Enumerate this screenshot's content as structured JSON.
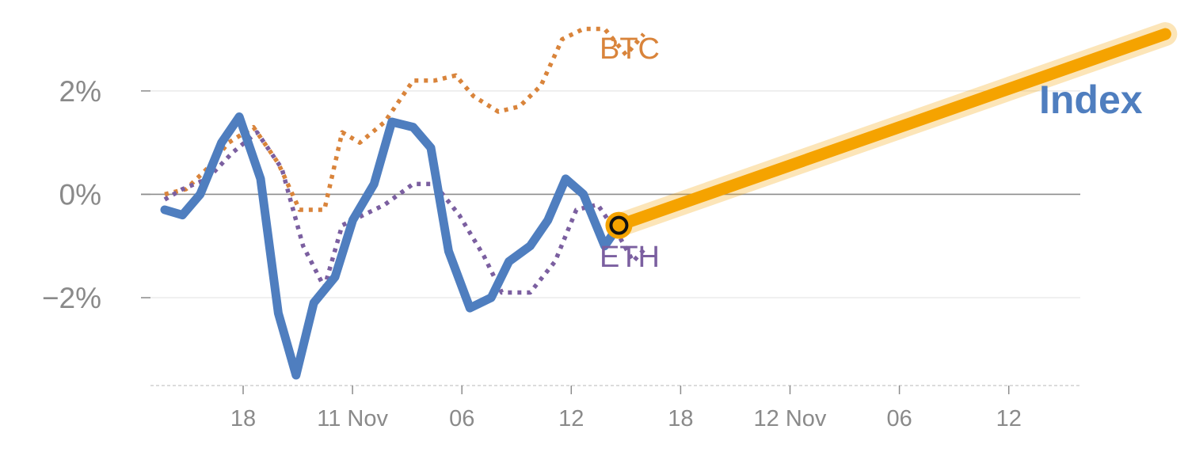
{
  "chart_data": {
    "type": "line",
    "title": "",
    "xlabel": "",
    "ylabel": "",
    "ylim": [
      -3.7,
      3.3
    ],
    "x_tick_labels": [
      "18",
      "11 Nov",
      "06",
      "12",
      "18",
      "12 Nov",
      "06",
      "12"
    ],
    "y_ticks": [
      {
        "value": 2,
        "label": "2%"
      },
      {
        "value": 0,
        "label": "0%"
      },
      {
        "value": -2,
        "label": "−2%"
      }
    ],
    "grid": true,
    "zero_line": true,
    "series": [
      {
        "name": "BTC",
        "style": "dotted",
        "color": "#d9843b",
        "points": [
          [
            0,
            0.0
          ],
          [
            0.6,
            0.1
          ],
          [
            1.2,
            0.5
          ],
          [
            1.8,
            1.0
          ],
          [
            2.5,
            1.3
          ],
          [
            3.2,
            0.6
          ],
          [
            3.8,
            -0.3
          ],
          [
            4.5,
            -0.3
          ],
          [
            5.0,
            1.2
          ],
          [
            5.5,
            1.0
          ],
          [
            6.2,
            1.4
          ],
          [
            7.0,
            2.2
          ],
          [
            7.6,
            2.2
          ],
          [
            8.2,
            2.3
          ],
          [
            8.7,
            1.9
          ],
          [
            9.4,
            1.6
          ],
          [
            10.0,
            1.7
          ],
          [
            10.6,
            2.1
          ],
          [
            11.2,
            3.0
          ],
          [
            11.8,
            3.2
          ],
          [
            12.4,
            3.2
          ],
          [
            13.0,
            2.7
          ],
          [
            13.5,
            3.1
          ]
        ]
      },
      {
        "name": "ETH",
        "style": "dotted",
        "color": "#7b5fa0",
        "points": [
          [
            0,
            -0.1
          ],
          [
            0.5,
            0.1
          ],
          [
            1.2,
            0.3
          ],
          [
            1.9,
            0.8
          ],
          [
            2.6,
            1.2
          ],
          [
            3.3,
            0.5
          ],
          [
            3.9,
            -1.0
          ],
          [
            4.5,
            -1.8
          ],
          [
            5.0,
            -0.6
          ],
          [
            5.6,
            -0.4
          ],
          [
            6.2,
            -0.2
          ],
          [
            7.0,
            0.2
          ],
          [
            7.6,
            0.2
          ],
          [
            8.3,
            -0.4
          ],
          [
            9.0,
            -1.2
          ],
          [
            9.5,
            -1.9
          ],
          [
            10.3,
            -1.9
          ],
          [
            11.0,
            -1.3
          ],
          [
            11.6,
            -0.3
          ],
          [
            12.2,
            -0.2
          ],
          [
            12.8,
            -0.8
          ],
          [
            13.2,
            -1.3
          ],
          [
            13.6,
            -1.0
          ]
        ]
      },
      {
        "name": "Index",
        "style": "solid",
        "color": "#4f7ebf",
        "points": [
          [
            0,
            -0.3
          ],
          [
            0.5,
            -0.4
          ],
          [
            1.0,
            0.0
          ],
          [
            1.6,
            1.0
          ],
          [
            2.1,
            1.5
          ],
          [
            2.7,
            0.3
          ],
          [
            3.2,
            -2.3
          ],
          [
            3.7,
            -3.5
          ],
          [
            4.2,
            -2.1
          ],
          [
            4.8,
            -1.6
          ],
          [
            5.3,
            -0.5
          ],
          [
            5.9,
            0.2
          ],
          [
            6.4,
            1.4
          ],
          [
            7.0,
            1.3
          ],
          [
            7.5,
            0.9
          ],
          [
            8.0,
            -1.1
          ],
          [
            8.6,
            -2.2
          ],
          [
            9.2,
            -2.0
          ],
          [
            9.7,
            -1.3
          ],
          [
            10.3,
            -1.0
          ],
          [
            10.8,
            -0.5
          ],
          [
            11.3,
            0.3
          ],
          [
            11.8,
            0.0
          ],
          [
            12.4,
            -1.0
          ],
          [
            12.8,
            -0.6
          ]
        ]
      }
    ],
    "projection": {
      "color": "#f5a300",
      "start": [
        12.8,
        -0.6
      ],
      "end": [
        28.2,
        3.1
      ]
    },
    "labels": {
      "btc": "BTC",
      "eth": "ETH",
      "index": "Index"
    }
  }
}
